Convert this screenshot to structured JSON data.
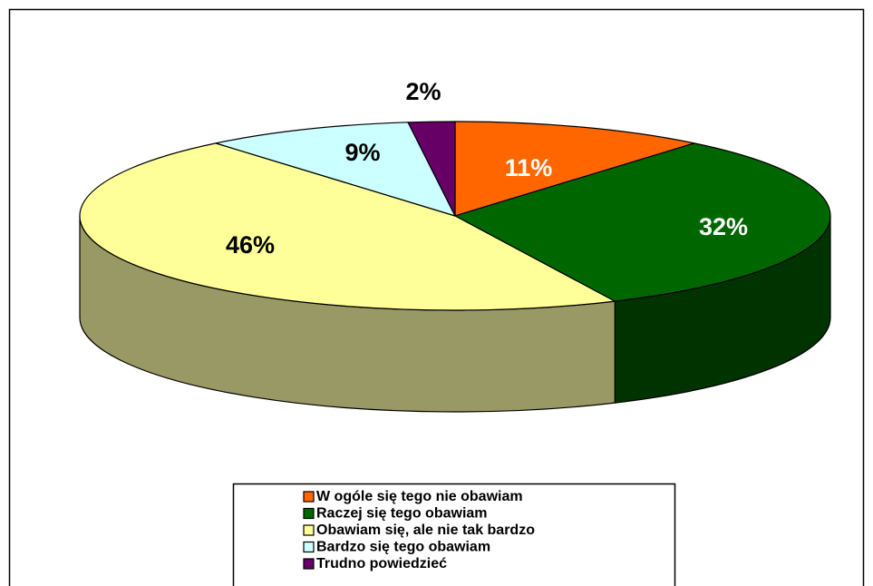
{
  "chart_data": {
    "type": "pie3d",
    "categories": [
      "W ogóle się tego nie obawiam",
      "Raczej się tego obawiam",
      "Obawiam się, ale nie tak bardzo",
      "Bardzo się tego obawiam",
      "Trudno powiedzieć"
    ],
    "values": [
      11,
      32,
      46,
      9,
      2
    ],
    "value_labels": [
      "11%",
      "32%",
      "46%",
      "9%",
      "2%"
    ],
    "colors": [
      "#ff6600",
      "#006600",
      "#ffff99",
      "#ccffff",
      "#660066"
    ],
    "side_colors": [
      "#993d00",
      "#003300",
      "#999966",
      "#7a9999",
      "#3d003d"
    ],
    "label_colors": [
      "#ffffff",
      "#ffffff",
      "#000000",
      "#000000",
      "#000000"
    ],
    "legend": "bottom"
  }
}
